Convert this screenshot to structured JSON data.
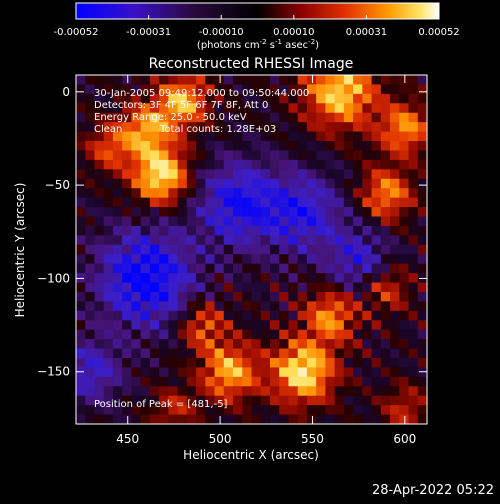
{
  "chart_data": {
    "type": "heatmap",
    "title": "Reconstructed RHESSI Image",
    "xlabel": "Heliocentric X (arcsec)",
    "ylabel": "Heliocentric Y (arcsec)",
    "xlim": [
      422,
      612
    ],
    "ylim": [
      -178,
      9
    ],
    "x_ticks": [
      450,
      500,
      550,
      600
    ],
    "y_ticks": [
      0,
      -50,
      -100,
      -150
    ],
    "colorbar": {
      "ticks": [
        "-0.00052",
        "-0.00031",
        "-0.00010",
        "0.00010",
        "0.00031",
        "0.00052"
      ],
      "range": [
        -0.00052,
        0.00052
      ],
      "units_label": "(photons cm",
      "units_exp1": "-2",
      "units_mid1": " s",
      "units_exp2": "-1",
      "units_mid2": " asec",
      "units_exp3": "-2",
      "units_end": ")",
      "colors": [
        "#0000ff",
        "#4a0c9e",
        "#000000",
        "#8b0000",
        "#e03000",
        "#ff8c00",
        "#ffe35a",
        "#ffffff"
      ]
    },
    "annotations": {
      "time": "30-Jan-2005 09:49:12.000 to 09:50:44.000",
      "detectors": "Detectors: 3F 4F 5F 6F 7F 8F, Att 0",
      "energy": "Energy Range: 25.0 - 50.0 keV",
      "clean": "Clean",
      "counts": "Total counts: 1.28E+03",
      "peak": "Position of Peak = [481,-5]"
    },
    "grid": false,
    "image_grid": {
      "nx": 38,
      "ny": 37,
      "bright_sources": [
        {
          "x": 468,
          "y": -45,
          "amp": 1.0,
          "sigma": 11
        },
        {
          "x": 480,
          "y": -5,
          "amp": 0.8,
          "sigma": 10
        },
        {
          "x": 460,
          "y": -20,
          "amp": 0.7,
          "sigma": 10
        },
        {
          "x": 565,
          "y": 0,
          "amp": 0.9,
          "sigma": 14
        },
        {
          "x": 600,
          "y": -20,
          "amp": 0.7,
          "sigma": 10
        },
        {
          "x": 590,
          "y": -55,
          "amp": 0.7,
          "sigma": 10
        },
        {
          "x": 545,
          "y": -150,
          "amp": 1.0,
          "sigma": 12
        },
        {
          "x": 505,
          "y": -150,
          "amp": 0.8,
          "sigma": 11
        },
        {
          "x": 490,
          "y": -125,
          "amp": 0.6,
          "sigma": 9
        },
        {
          "x": 560,
          "y": -120,
          "amp": 0.7,
          "sigma": 10
        },
        {
          "x": 590,
          "y": -105,
          "amp": 0.5,
          "sigma": 9
        },
        {
          "x": 475,
          "y": -170,
          "amp": 0.4,
          "sigma": 8
        },
        {
          "x": 440,
          "y": -30,
          "amp": 0.5,
          "sigma": 9
        },
        {
          "x": 600,
          "y": -170,
          "amp": 0.4,
          "sigma": 9
        }
      ],
      "dark_sources": [
        {
          "x": 460,
          "y": -100,
          "amp": -1.0,
          "sigma": 18
        },
        {
          "x": 510,
          "y": -60,
          "amp": -0.8,
          "sigma": 16
        },
        {
          "x": 545,
          "y": -65,
          "amp": -0.7,
          "sigma": 15
        },
        {
          "x": 575,
          "y": -90,
          "amp": -0.6,
          "sigma": 12
        },
        {
          "x": 430,
          "y": -150,
          "amp": -0.6,
          "sigma": 12
        }
      ]
    }
  },
  "footer": {
    "date": "28-Apr-2022 05:22"
  }
}
